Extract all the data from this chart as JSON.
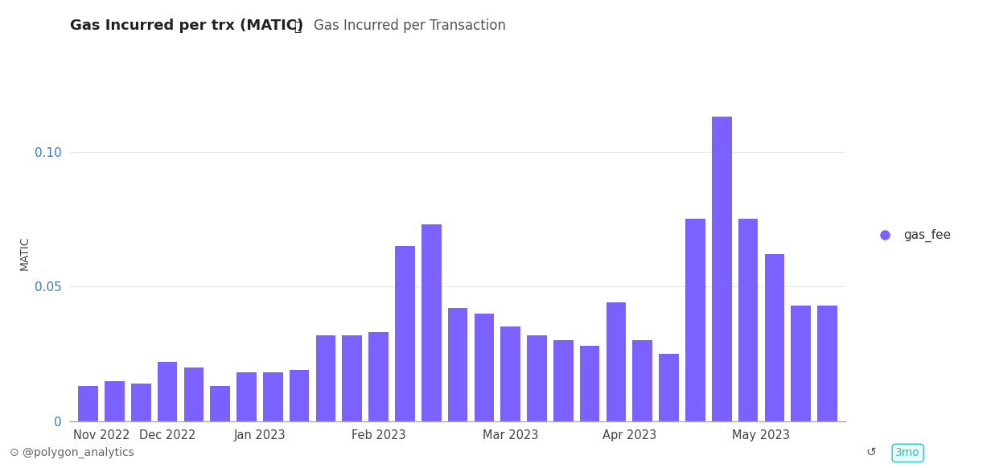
{
  "title": "Gas Incurred per trx (MATIC)",
  "subtitle": "Gas Incurred per Transaction",
  "ylabel": "MATIC",
  "bar_color": "#7B61FF",
  "legend_label": "gas_fee",
  "legend_color": "#7B61FF",
  "background_color": "#ffffff",
  "footer_text": "@polygon_analytics",
  "ylim": [
    0,
    0.125
  ],
  "yticks": [
    0,
    0.05,
    0.1
  ],
  "bar_values": [
    0.013,
    0.015,
    0.014,
    0.022,
    0.02,
    0.013,
    0.018,
    0.018,
    0.019,
    0.032,
    0.032,
    0.033,
    0.065,
    0.073,
    0.042,
    0.04,
    0.035,
    0.032,
    0.03,
    0.028,
    0.044,
    0.03,
    0.025,
    0.075,
    0.113,
    0.075,
    0.062,
    0.043,
    0.043
  ],
  "month_labels": [
    "Nov 2022",
    "Dec 2022",
    "Jan 2023",
    "Feb 2023",
    "Mar 2023",
    "Apr 2023",
    "May 2023"
  ],
  "month_center_indices": [
    0.5,
    3.0,
    6.5,
    11.0,
    16.0,
    20.5,
    25.5
  ]
}
